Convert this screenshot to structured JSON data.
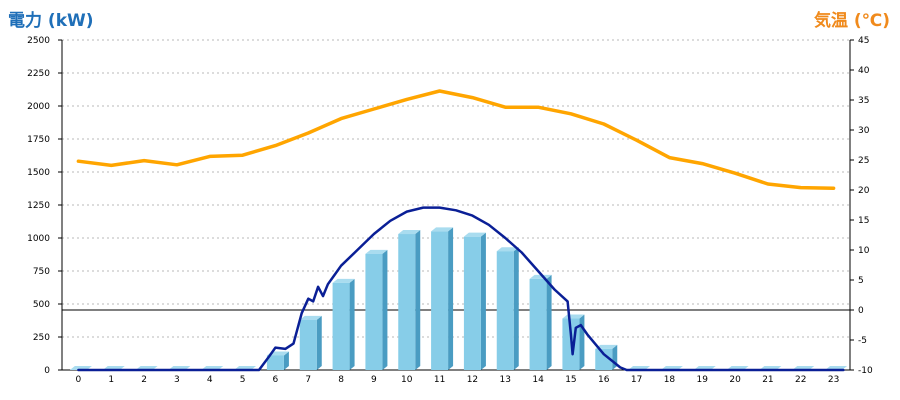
{
  "header": {
    "left_title": "電力 (kW)",
    "right_title": "気温 (℃)"
  },
  "colors": {
    "left_title": "#1f6fb8",
    "right_title": "#f08a1c",
    "bar_front": "#87cde8",
    "bar_side": "#4a9cc2",
    "bar_top": "#a9dcef",
    "power_line": "#0a1f96",
    "temp_line": "#ffa500",
    "grid": "#b8b8b8",
    "axis": "#000000"
  },
  "chart_data": {
    "type": "bar",
    "categories": [
      "0",
      "1",
      "2",
      "3",
      "4",
      "5",
      "6",
      "7",
      "8",
      "9",
      "10",
      "11",
      "12",
      "13",
      "14",
      "15",
      "16",
      "17",
      "18",
      "19",
      "20",
      "21",
      "22",
      "23"
    ],
    "xlabel": "",
    "ylabel": "電力 (kW)",
    "ylim": [
      0,
      2500
    ],
    "yticks": [
      0,
      250,
      500,
      750,
      1000,
      1250,
      1500,
      1750,
      2000,
      2250,
      2500
    ],
    "y2label": "気温 (℃)",
    "y2lim": [
      -10,
      45
    ],
    "y2ticks": [
      -10,
      -5,
      0,
      5,
      10,
      15,
      20,
      25,
      30,
      35,
      40,
      45
    ],
    "grid": true,
    "series": [
      {
        "kind": "bar",
        "axis": "left",
        "values": [
          0,
          0,
          0,
          0,
          0,
          0,
          110,
          380,
          660,
          880,
          1030,
          1050,
          1010,
          900,
          690,
          390,
          160,
          0,
          0,
          0,
          0,
          0,
          0,
          0
        ]
      },
      {
        "kind": "line",
        "axis": "left",
        "x": [
          0,
          5.5,
          5.8,
          6.0,
          6.3,
          6.55,
          6.8,
          7.0,
          7.15,
          7.3,
          7.45,
          7.6,
          7.8,
          8.0,
          8.5,
          9.0,
          9.5,
          10.0,
          10.5,
          11.0,
          11.5,
          12.0,
          12.5,
          13.0,
          13.5,
          14.0,
          14.5,
          14.9,
          15.0,
          15.05,
          15.15,
          15.3,
          15.5,
          16.0,
          16.5,
          16.7,
          23.3
        ],
        "y": [
          0,
          0,
          100,
          170,
          160,
          200,
          430,
          540,
          520,
          630,
          560,
          650,
          720,
          790,
          910,
          1030,
          1130,
          1200,
          1230,
          1230,
          1210,
          1170,
          1100,
          1000,
          890,
          750,
          610,
          520,
          270,
          120,
          320,
          340,
          270,
          120,
          20,
          0,
          0
        ]
      },
      {
        "kind": "line",
        "axis": "right",
        "x": [
          0,
          1,
          2,
          3,
          4,
          5,
          6,
          7,
          8,
          9,
          10,
          11,
          12,
          13,
          14,
          15,
          16,
          17,
          18,
          19,
          20,
          21,
          22,
          23
        ],
        "y": [
          24.8,
          24.1,
          24.9,
          24.2,
          25.6,
          25.8,
          27.4,
          29.5,
          31.9,
          33.5,
          35.1,
          36.5,
          35.4,
          33.8,
          33.8,
          32.7,
          31.0,
          28.3,
          25.4,
          24.4,
          22.8,
          21.0,
          20.4,
          20.3
        ]
      }
    ]
  }
}
